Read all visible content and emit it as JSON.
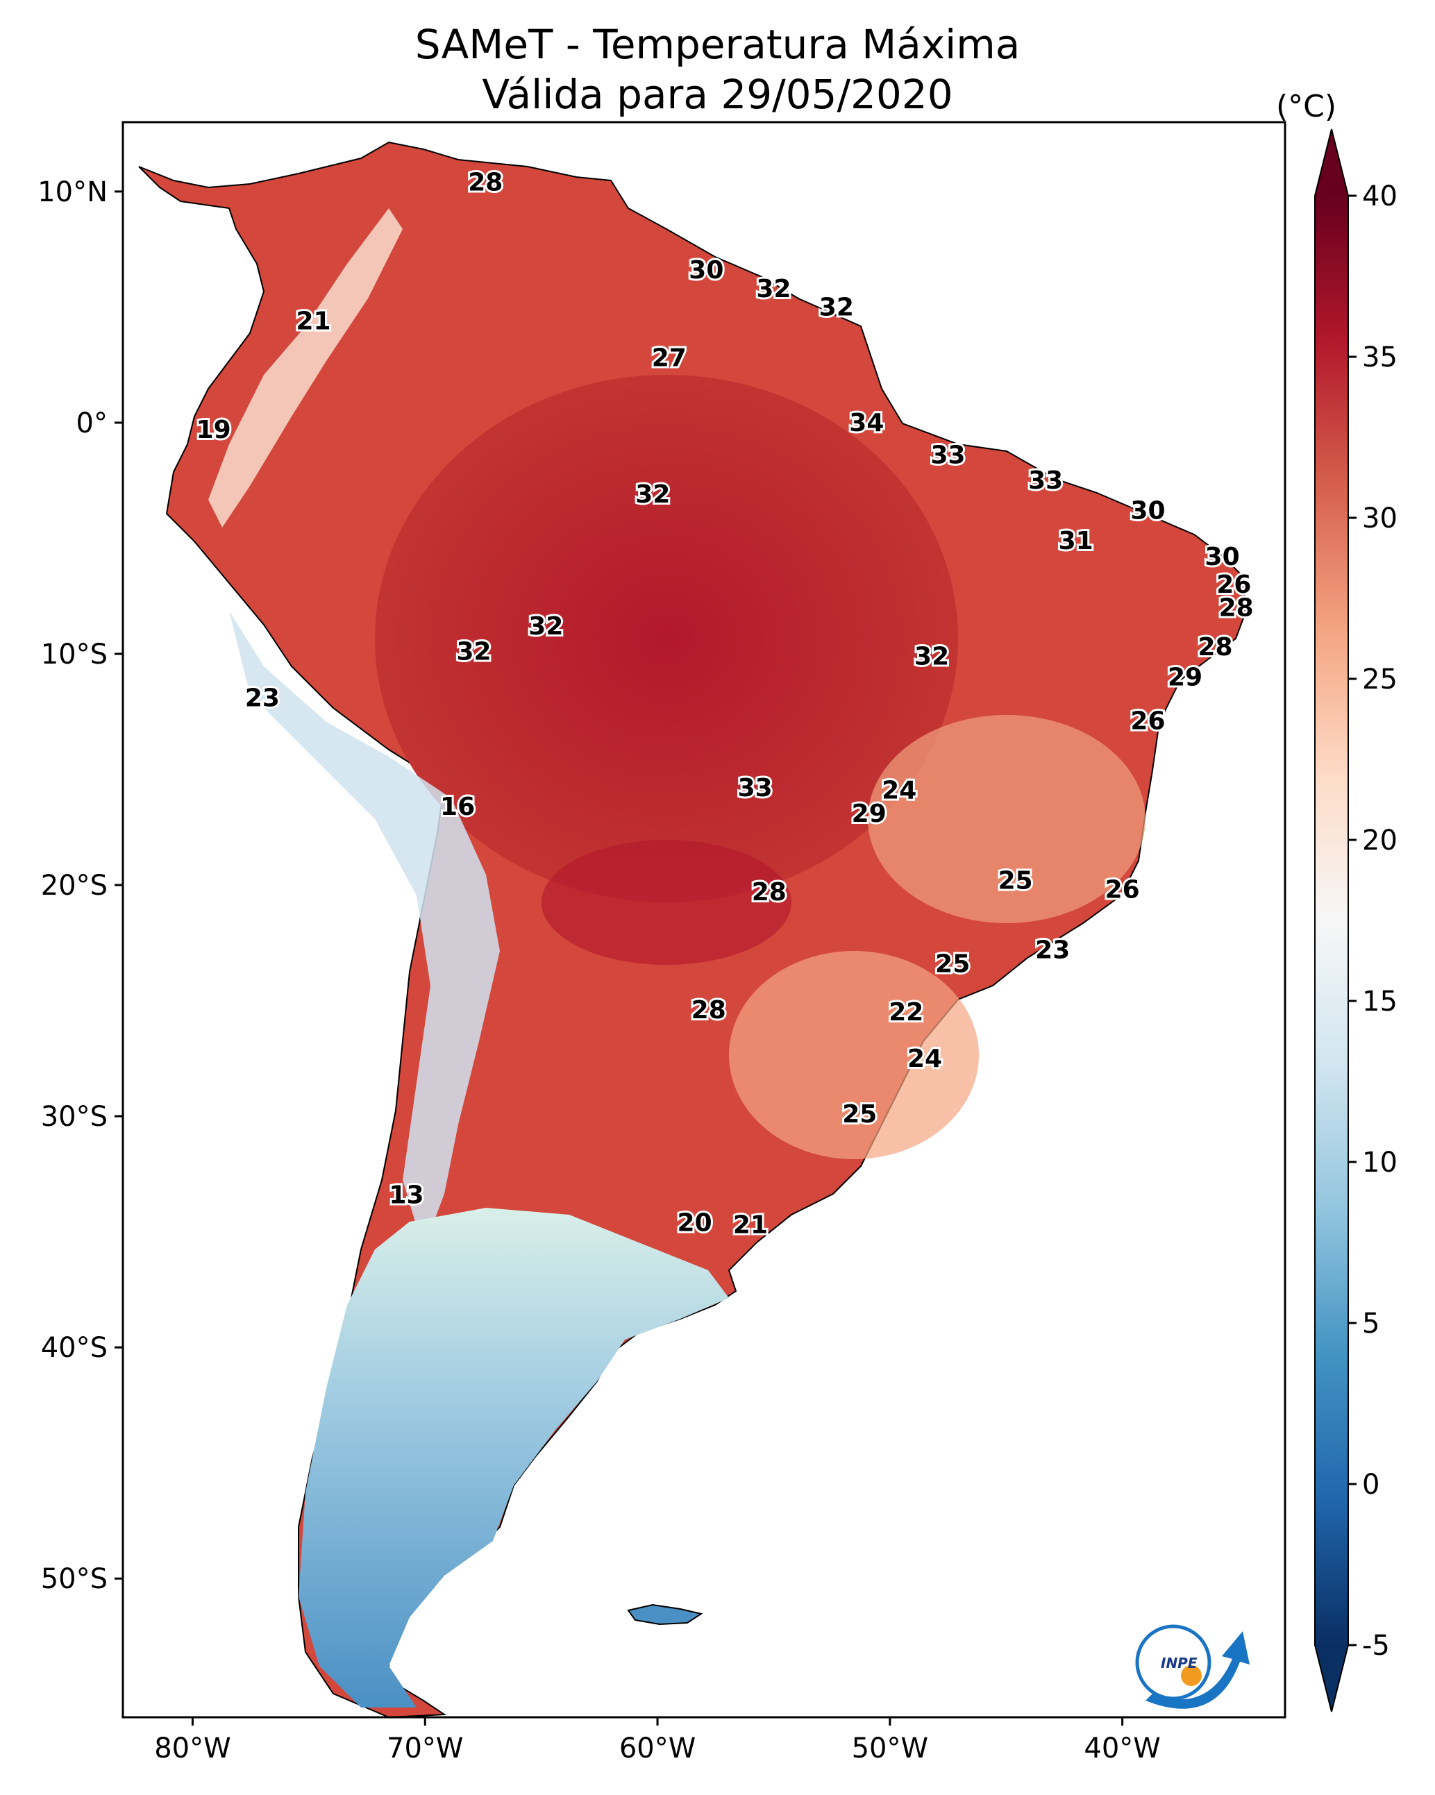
{
  "title_line1": "SAMeT - Temperatura Máxima",
  "title_line2": "Válida para 29/05/2020",
  "colorbar": {
    "unit": "(°C)",
    "min": -5,
    "max": 40,
    "ticks": [
      "40",
      "35",
      "30",
      "25",
      "20",
      "15",
      "10",
      "5",
      "0",
      "-5"
    ],
    "colors": [
      "#0a2f63",
      "#2166ac",
      "#4393c3",
      "#92c5de",
      "#d1e5f0",
      "#f7f7f7",
      "#fddbc7",
      "#f4a582",
      "#d6604d",
      "#b2182b",
      "#67001f"
    ]
  },
  "map": {
    "lon_ticks": [
      "80°W",
      "70°W",
      "60°W",
      "50°W",
      "40°W"
    ],
    "lat_ticks": [
      "10°N",
      "0°",
      "10°S",
      "20°S",
      "30°S",
      "40°S",
      "50°S"
    ],
    "labels": [
      {
        "lon": -67.4,
        "lat": 10.4,
        "text": "28"
      },
      {
        "lon": -57.9,
        "lat": 6.6,
        "text": "30"
      },
      {
        "lon": -55.0,
        "lat": 5.8,
        "text": "32"
      },
      {
        "lon": -52.3,
        "lat": 5.0,
        "text": "32"
      },
      {
        "lon": -74.8,
        "lat": 4.4,
        "text": "21"
      },
      {
        "lon": -59.5,
        "lat": 2.8,
        "text": "27"
      },
      {
        "lon": -51.0,
        "lat": 0.0,
        "text": "34"
      },
      {
        "lon": -79.1,
        "lat": -0.3,
        "text": "19"
      },
      {
        "lon": -47.5,
        "lat": -1.4,
        "text": "33"
      },
      {
        "lon": -43.3,
        "lat": -2.5,
        "text": "33"
      },
      {
        "lon": -60.2,
        "lat": -3.1,
        "text": "32"
      },
      {
        "lon": -38.9,
        "lat": -3.8,
        "text": "30"
      },
      {
        "lon": -42.0,
        "lat": -5.1,
        "text": "31"
      },
      {
        "lon": -35.7,
        "lat": -5.8,
        "text": "30"
      },
      {
        "lon": -35.2,
        "lat": -7.0,
        "text": "26"
      },
      {
        "lon": -35.1,
        "lat": -8.0,
        "text": "28"
      },
      {
        "lon": -64.8,
        "lat": -8.8,
        "text": "32"
      },
      {
        "lon": -67.9,
        "lat": -9.9,
        "text": "32"
      },
      {
        "lon": -48.2,
        "lat": -10.1,
        "text": "32"
      },
      {
        "lon": -36.0,
        "lat": -9.7,
        "text": "28"
      },
      {
        "lon": -37.3,
        "lat": -11.0,
        "text": "29"
      },
      {
        "lon": -77.0,
        "lat": -11.9,
        "text": "23"
      },
      {
        "lon": -38.9,
        "lat": -12.9,
        "text": "26"
      },
      {
        "lon": -49.6,
        "lat": -15.9,
        "text": "24"
      },
      {
        "lon": -55.8,
        "lat": -15.8,
        "text": "33"
      },
      {
        "lon": -50.9,
        "lat": -16.9,
        "text": "29"
      },
      {
        "lon": -68.6,
        "lat": -16.6,
        "text": "16"
      },
      {
        "lon": -44.6,
        "lat": -19.8,
        "text": "25"
      },
      {
        "lon": -55.2,
        "lat": -20.3,
        "text": "28"
      },
      {
        "lon": -40.0,
        "lat": -20.2,
        "text": "26"
      },
      {
        "lon": -43.0,
        "lat": -22.8,
        "text": "23"
      },
      {
        "lon": -47.3,
        "lat": -23.4,
        "text": "25"
      },
      {
        "lon": -57.8,
        "lat": -25.4,
        "text": "28"
      },
      {
        "lon": -49.3,
        "lat": -25.5,
        "text": "22"
      },
      {
        "lon": -48.5,
        "lat": -27.5,
        "text": "24"
      },
      {
        "lon": -51.3,
        "lat": -29.9,
        "text": "25"
      },
      {
        "lon": -70.8,
        "lat": -33.4,
        "text": "13"
      },
      {
        "lon": -58.4,
        "lat": -34.6,
        "text": "20"
      },
      {
        "lon": -56.0,
        "lat": -34.7,
        "text": "21"
      }
    ]
  },
  "logo": {
    "text": "INPE"
  }
}
